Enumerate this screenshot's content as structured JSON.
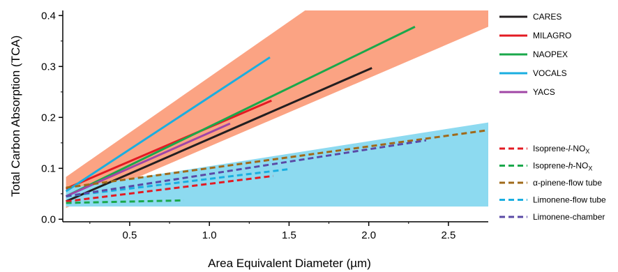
{
  "chart_data": {
    "type": "line",
    "title": "",
    "xlabel": "Area Equivalent Diameter (µm)",
    "ylabel": "Total Carbon Absorption (TCA)",
    "xlim": [
      0.08,
      2.75
    ],
    "ylim": [
      -0.005,
      0.41
    ],
    "xticks": [
      0.5,
      1.0,
      1.5,
      2.0,
      2.5
    ],
    "xtick_labels": [
      "0.5",
      "1.0",
      "1.5",
      "2.0",
      "2.5"
    ],
    "yticks": [
      0.0,
      0.1,
      0.2,
      0.3,
      0.4
    ],
    "ytick_labels": [
      "0.0",
      "0.1",
      "0.2",
      "0.3",
      "0.4"
    ],
    "grid": false,
    "legend_position": "right",
    "bands": [
      {
        "color": "#fba383",
        "polygon": [
          [
            0.1,
            0.022
          ],
          [
            0.1,
            0.083
          ],
          [
            1.6,
            0.41
          ],
          [
            2.75,
            0.41
          ],
          [
            2.75,
            0.378
          ]
        ]
      },
      {
        "color": "#8ddaf0",
        "polygon": [
          [
            0.1,
            0.025
          ],
          [
            0.1,
            0.06
          ],
          [
            2.75,
            0.19
          ],
          [
            2.75,
            0.025
          ]
        ]
      }
    ],
    "series": [
      {
        "name": "CARES",
        "color": "#231f20",
        "dash": "solid",
        "x": [
          0.1,
          2.02
        ],
        "y": [
          0.035,
          0.297
        ]
      },
      {
        "name": "MILAGRO",
        "color": "#e31b23",
        "dash": "solid",
        "x": [
          0.1,
          1.39
        ],
        "y": [
          0.06,
          0.233
        ]
      },
      {
        "name": "NAOPEX",
        "color": "#1aa84b",
        "dash": "solid",
        "x": [
          0.1,
          2.29
        ],
        "y": [
          0.045,
          0.378
        ]
      },
      {
        "name": "VOCALS",
        "color": "#1aaee0",
        "dash": "solid",
        "x": [
          0.1,
          1.38
        ],
        "y": [
          0.055,
          0.318
        ]
      },
      {
        "name": "YACS",
        "color": "#a046a6",
        "dash": "solid",
        "x": [
          0.1,
          1.13
        ],
        "y": [
          0.045,
          0.188
        ]
      },
      {
        "name": "Isoprene-l-NOx",
        "color": "#e31b23",
        "dash": "dashed",
        "x": [
          0.1,
          1.4
        ],
        "y": [
          0.035,
          0.085
        ]
      },
      {
        "name": "Isoprene-h-NOx",
        "color": "#1aa84b",
        "dash": "dashed",
        "x": [
          0.1,
          0.84
        ],
        "y": [
          0.032,
          0.037
        ]
      },
      {
        "name": "α-pinene-flow tube",
        "color": "#a06a1a",
        "dash": "dashed",
        "x": [
          0.1,
          2.75
        ],
        "y": [
          0.062,
          0.175
        ]
      },
      {
        "name": "Limonene-flow tube",
        "color": "#1aaee0",
        "dash": "dashed",
        "x": [
          0.1,
          1.49
        ],
        "y": [
          0.045,
          0.098
        ]
      },
      {
        "name": "Limonene-chamber",
        "color": "#5a4aa6",
        "dash": "dashed",
        "x": [
          0.1,
          2.36
        ],
        "y": [
          0.045,
          0.155
        ]
      }
    ],
    "legend": {
      "solid_entries": [
        {
          "label": "CARES",
          "color": "#231f20"
        },
        {
          "label": "MILAGRO",
          "color": "#e31b23"
        },
        {
          "label": "NAOPEX",
          "color": "#1aa84b"
        },
        {
          "label": "VOCALS",
          "color": "#1aaee0"
        },
        {
          "label": "YACS",
          "color": "#a046a6"
        }
      ],
      "dashed_entries": [
        {
          "label_prefix": "Isoprene-",
          "label_italic": "l",
          "label_mid": "-NO",
          "label_sub": "X",
          "label": "Isoprene-l-NOx",
          "color": "#e31b23"
        },
        {
          "label_prefix": "Isoprene-",
          "label_italic": "h",
          "label_mid": "-NO",
          "label_sub": "X",
          "label": "Isoprene-h-NOx",
          "color": "#1aa84b"
        },
        {
          "label_prefix": "α-pinene-flow tube",
          "label_italic": "",
          "label_mid": "",
          "label_sub": "",
          "label": "α-pinene-flow tube",
          "color": "#a06a1a"
        },
        {
          "label_prefix": "Limonene-flow tube",
          "label_italic": "",
          "label_mid": "",
          "label_sub": "",
          "label": "Limonene-flow tube",
          "color": "#1aaee0"
        },
        {
          "label_prefix": "Limonene-chamber",
          "label_italic": "",
          "label_mid": "",
          "label_sub": "",
          "label": "Limonene-chamber",
          "color": "#5a4aa6"
        }
      ]
    }
  }
}
